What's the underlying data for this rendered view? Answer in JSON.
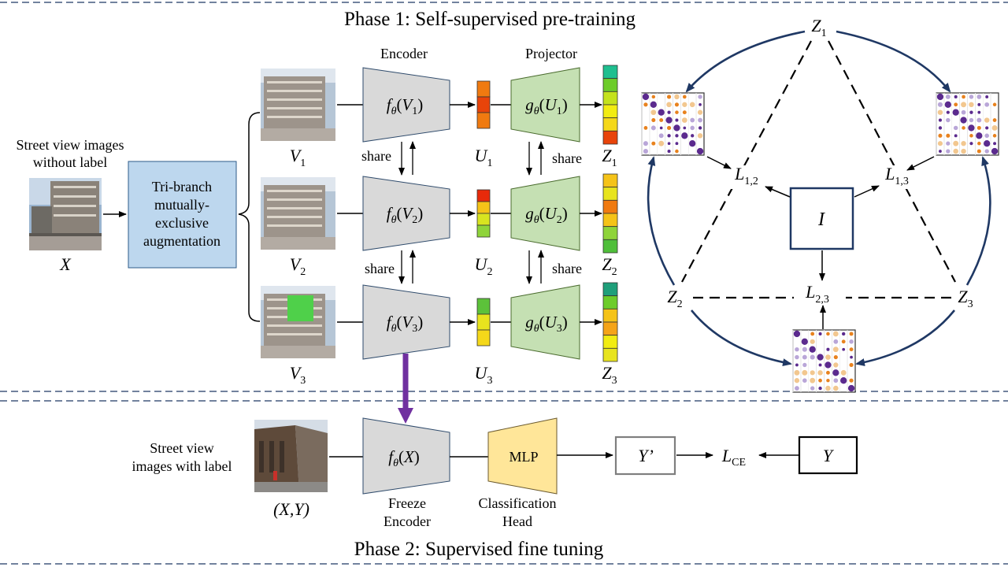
{
  "phase1": {
    "title": "Phase 1: Self-supervised pre-training"
  },
  "phase2": {
    "title": "Phase 2: Supervised fine tuning"
  },
  "input": {
    "caption_line1": "Street view images",
    "caption_line2": "without label",
    "symbol": "X"
  },
  "augmentation": {
    "lines": [
      "Tri-branch",
      "mutually-",
      "exclusive",
      "augmentation"
    ],
    "color": "#bdd7ee"
  },
  "headers": {
    "encoder": "Encoder",
    "projector": "Projector"
  },
  "share_label": "share",
  "branches": [
    {
      "view_symbol": "V",
      "view_sub": "1",
      "encoder_text": "fθ(V1)",
      "enc_fn": "f",
      "enc_fn_sub": "θ",
      "enc_arg": "V",
      "enc_arg_sub": "1",
      "proj_fn": "g",
      "proj_fn_sub": "θ",
      "proj_arg": "U",
      "proj_arg_sub": "1",
      "u_symbol": "U",
      "u_sub": "1",
      "z_symbol": "Z",
      "z_sub": "1",
      "u_colors": [
        "#f07a10",
        "#e8440a",
        "#f07a10"
      ],
      "z_colors": [
        "#1fbf8f",
        "#6dcc2a",
        "#c4e21c",
        "#f2ec12",
        "#f5d81a",
        "#e8440a"
      ]
    },
    {
      "view_symbol": "V",
      "view_sub": "2",
      "enc_fn": "f",
      "enc_fn_sub": "θ",
      "enc_arg": "V",
      "enc_arg_sub": "2",
      "proj_fn": "g",
      "proj_fn_sub": "θ",
      "proj_arg": "U",
      "proj_arg_sub": "2",
      "u_symbol": "U",
      "u_sub": "2",
      "z_symbol": "Z",
      "z_sub": "2",
      "u_colors": [
        "#e82a0a",
        "#f5c318",
        "#d8e420",
        "#8fd43a"
      ],
      "z_colors": [
        "#f5c318",
        "#e8e41e",
        "#f07a10",
        "#f5c318",
        "#8fd43a",
        "#4fbf3a"
      ]
    },
    {
      "view_symbol": "V",
      "view_sub": "3",
      "enc_fn": "f",
      "enc_fn_sub": "θ",
      "enc_arg": "V",
      "enc_arg_sub": "3",
      "proj_fn": "g",
      "proj_fn_sub": "θ",
      "proj_arg": "U",
      "proj_arg_sub": "3",
      "u_symbol": "U",
      "u_sub": "3",
      "z_symbol": "Z",
      "z_sub": "3",
      "u_colors": [
        "#5cc23a",
        "#e8e41e",
        "#f5d81a"
      ],
      "z_colors": [
        "#1f9f7a",
        "#6dcc2a",
        "#f5c318",
        "#f5a418",
        "#f2ec12",
        "#e8e41e"
      ]
    }
  ],
  "colors": {
    "encoder_fill": "#d9d9d9",
    "projector_fill": "#c5e0b3",
    "mlp_fill": "#ffe699",
    "purple_arrow": "#7030a0",
    "dark_blue": "#1f3864",
    "patch_green": "#4fd04a",
    "matrix_purple": "#5b2a8e",
    "matrix_orange": "#e8821e",
    "matrix_light": "#b9a6d8"
  },
  "triangle": {
    "z1": {
      "symbol": "Z",
      "sub": "1"
    },
    "z2": {
      "symbol": "Z",
      "sub": "2"
    },
    "z3": {
      "symbol": "Z",
      "sub": "3"
    },
    "l12": {
      "symbol": "L",
      "sub": "1,2"
    },
    "l13": {
      "symbol": "L",
      "sub": "1,3"
    },
    "l23": {
      "symbol": "L",
      "sub": "2,3"
    },
    "identity": "I"
  },
  "phase2_flow": {
    "caption_line1": "Street view",
    "caption_line2": "images with label",
    "pair_label": "(X,Y)",
    "encoder_fn": "f",
    "encoder_fn_sub": "θ",
    "encoder_arg": "X",
    "freeze_line1": "Freeze",
    "freeze_line2": "Encoder",
    "mlp_label": "MLP",
    "head_line1": "Classification",
    "head_line2": "Head",
    "prediction": "Y’",
    "loss": "L",
    "loss_sub": "CE",
    "target": "Y"
  }
}
